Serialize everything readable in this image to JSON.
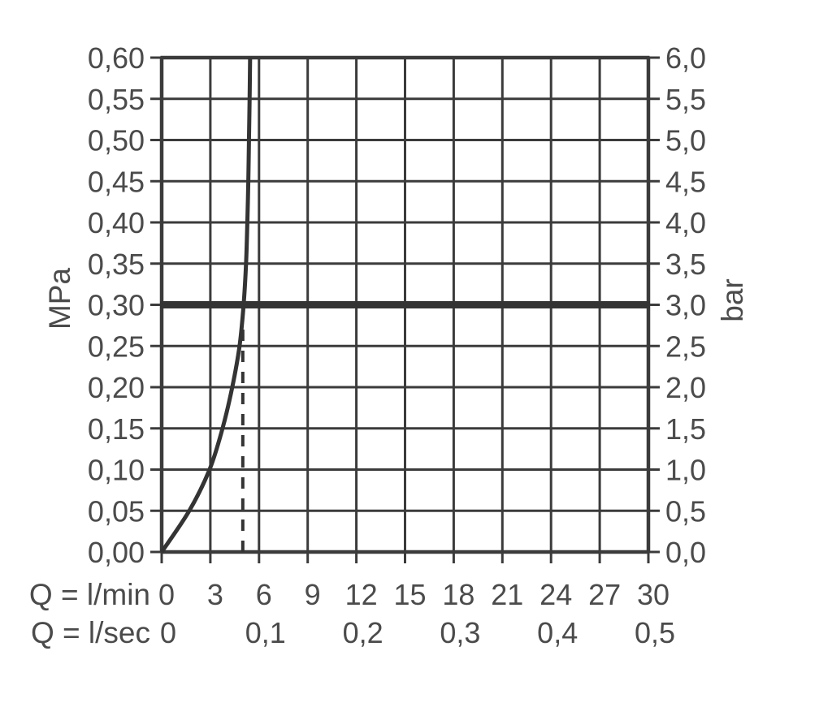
{
  "chart_data": {
    "type": "line",
    "title": "",
    "x_axis": {
      "label": "Q = l/min",
      "range": [
        0,
        30
      ],
      "ticks": [
        0,
        3,
        6,
        9,
        12,
        15,
        18,
        21,
        24,
        27,
        30
      ],
      "tick_labels": [
        "0",
        "3",
        "6",
        "9",
        "12",
        "15",
        "18",
        "21",
        "24",
        "27",
        "30"
      ]
    },
    "x_axis_secondary": {
      "label": "Q = l/sec",
      "ticks": [
        0,
        6,
        12,
        18,
        24,
        30
      ],
      "tick_labels": [
        "0",
        "0,1",
        "0,2",
        "0,3",
        "0,4",
        "0,5"
      ]
    },
    "y_axis_left": {
      "label": "MPa",
      "range": [
        0,
        0.6
      ],
      "step": 0.05,
      "tick_values": [
        0,
        0.05,
        0.1,
        0.15,
        0.2,
        0.25,
        0.3,
        0.35,
        0.4,
        0.45,
        0.5,
        0.55,
        0.6
      ],
      "tick_labels": [
        "0,00",
        "0,05",
        "0,10",
        "0,15",
        "0,20",
        "0,25",
        "0,30",
        "0,35",
        "0,40",
        "0,45",
        "0,50",
        "0,55",
        "0,60"
      ]
    },
    "y_axis_right": {
      "label": "bar",
      "range": [
        0,
        6
      ],
      "step": 0.5,
      "tick_labels": [
        "0,0",
        "0,5",
        "1,0",
        "1,5",
        "2,0",
        "2,5",
        "3,0",
        "3,5",
        "4,0",
        "4,5",
        "5,0",
        "5,5",
        "6,0"
      ]
    },
    "grid": {
      "visible": true,
      "x_step_lmin": 3,
      "y_step_mpa": 0.05
    },
    "series": [
      {
        "name": "flow-performance-curve",
        "points_lmin_mpa": [
          [
            0,
            0.0
          ],
          [
            1.7,
            0.05
          ],
          [
            2.95,
            0.1
          ],
          [
            3.75,
            0.15
          ],
          [
            4.35,
            0.2
          ],
          [
            4.8,
            0.25
          ],
          [
            5.05,
            0.3
          ],
          [
            5.2,
            0.35
          ],
          [
            5.28,
            0.4
          ],
          [
            5.34,
            0.45
          ],
          [
            5.38,
            0.5
          ],
          [
            5.42,
            0.55
          ],
          [
            5.45,
            0.6
          ]
        ]
      }
    ],
    "reference_lines": {
      "horizontal_thick": {
        "value_mpa": 0.3,
        "value_bar": 3.0,
        "style": "solid-thick"
      },
      "vertical_dashed": {
        "value_lmin": 5.0,
        "from_mpa": 0.0,
        "to_mpa": 0.28,
        "style": "dashed"
      }
    },
    "legend": null,
    "colors": {
      "line": "#3b3b3b",
      "curve": "#343434",
      "text": "#4b4b4b",
      "background": "#ffffff"
    }
  }
}
